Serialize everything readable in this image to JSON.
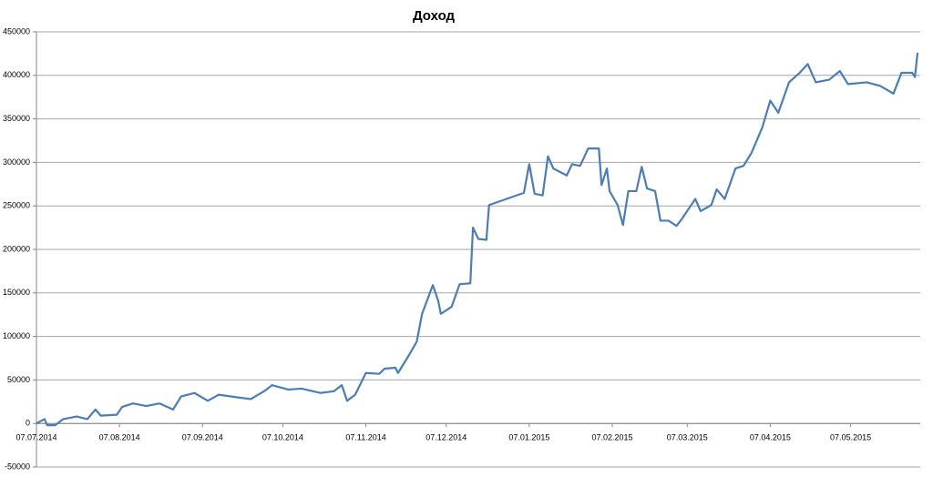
{
  "chart_data": {
    "type": "line",
    "title": "Доход",
    "x": [
      "07.07.2014",
      "10.07.2014",
      "11.07.2014",
      "14.07.2014",
      "17.07.2014",
      "22.07.2014",
      "26.07.2014",
      "29.07.2014",
      "31.07.2014",
      "06.08.2014",
      "08.08.2014",
      "12.08.2014",
      "17.08.2014",
      "22.08.2014",
      "27.08.2014",
      "30.08.2014",
      "04.09.2014",
      "09.09.2014",
      "13.09.2014",
      "20.09.2014",
      "25.09.2014",
      "30.09.2014",
      "03.10.2014",
      "09.10.2014",
      "14.10.2014",
      "21.10.2014",
      "26.10.2014",
      "29.10.2014",
      "31.10.2014",
      "03.11.2014",
      "07.11.2014",
      "12.11.2014",
      "14.11.2014",
      "18.11.2014",
      "19.11.2014",
      "23.11.2014",
      "26.11.2014",
      "28.11.2014",
      "02.12.2014",
      "04.12.2014",
      "05.12.2014",
      "09.12.2014",
      "12.12.2014",
      "16.12.2014",
      "17.12.2014",
      "19.12.2014",
      "22.12.2014",
      "23.12.2014",
      "05.01.2015",
      "07.01.2015",
      "09.01.2015",
      "12.01.2015",
      "14.01.2015",
      "16.01.2015",
      "21.01.2015",
      "23.01.2015",
      "26.01.2015",
      "29.01.2015",
      "02.02.2015",
      "03.02.2015",
      "05.02.2015",
      "06.02.2015",
      "09.02.2015",
      "11.02.2015",
      "13.02.2015",
      "16.02.2015",
      "18.02.2015",
      "20.02.2015",
      "23.02.2015",
      "25.02.2015",
      "28.02.2015",
      "03.03.2015",
      "05.03.2015",
      "10.03.2015",
      "12.03.2015",
      "16.03.2015",
      "18.03.2015",
      "21.03.2015",
      "25.03.2015",
      "28.03.2015",
      "31.03.2015",
      "04.04.2015",
      "07.04.2015",
      "10.04.2015",
      "14.04.2015",
      "18.04.2015",
      "21.04.2015",
      "24.04.2015",
      "29.04.2015",
      "03.05.2015",
      "06.05.2015",
      "13.05.2015",
      "18.05.2015",
      "23.05.2015",
      "26.05.2015",
      "30.05.2015",
      "31.05.2015",
      "01.06.2015"
    ],
    "series": [
      {
        "name": "Доход",
        "color": "#4a7ebb",
        "values": [
          0,
          5000,
          -2000,
          -2000,
          5000,
          8000,
          5000,
          16000,
          9000,
          10000,
          19000,
          23000,
          20000,
          23000,
          16000,
          31000,
          35000,
          26000,
          33000,
          30000,
          28000,
          37000,
          44000,
          39000,
          40000,
          35000,
          37000,
          44000,
          26000,
          33000,
          58000,
          57000,
          63000,
          64000,
          58000,
          78000,
          94000,
          126000,
          159000,
          141000,
          126000,
          134000,
          160000,
          161000,
          225000,
          212000,
          211000,
          251000,
          265000,
          298000,
          264000,
          262000,
          307000,
          293000,
          285000,
          298000,
          296000,
          316000,
          316000,
          274000,
          293000,
          267000,
          251000,
          228000,
          267000,
          267000,
          295000,
          270000,
          267000,
          233000,
          233000,
          227000,
          235000,
          258000,
          244000,
          251000,
          269000,
          258000,
          293000,
          296000,
          311000,
          340000,
          371000,
          357000,
          392000,
          403000,
          413000,
          392000,
          395000,
          405000,
          390000,
          392000,
          388000,
          379000,
          403000,
          403000,
          398000,
          426000
        ]
      }
    ],
    "xlim": [
      "07.07.2014",
      "02.06.2015"
    ],
    "xticks": [
      "07.07.2014",
      "07.08.2014",
      "07.09.2014",
      "07.10.2014",
      "07.11.2014",
      "07.12.2014",
      "07.01.2015",
      "07.02.2015",
      "07.03.2015",
      "07.04.2015",
      "07.05.2015"
    ],
    "ylim": [
      -50000,
      450000
    ],
    "yticks": [
      -50000,
      0,
      50000,
      100000,
      150000,
      200000,
      250000,
      300000,
      350000,
      400000,
      450000
    ],
    "grid": true
  }
}
